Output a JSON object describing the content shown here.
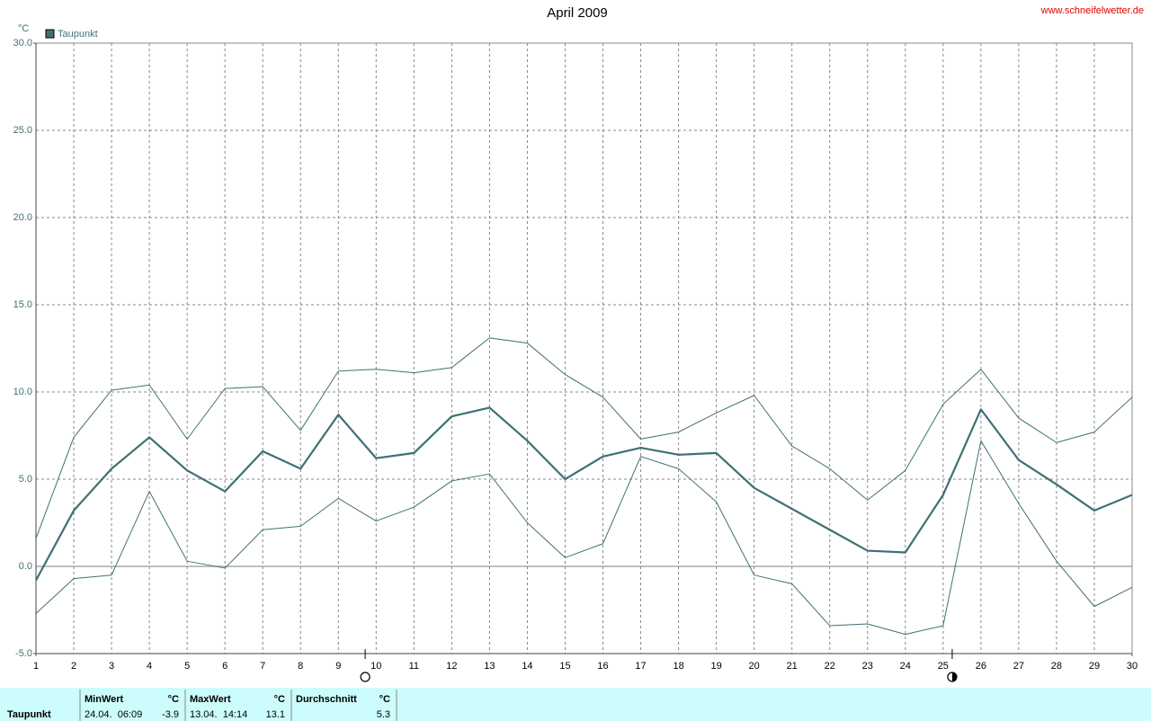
{
  "chart_data": {
    "type": "line",
    "title": "April 2009",
    "source": "www.schneifelwetter.de",
    "y_unit": "°C",
    "x": [
      1,
      2,
      3,
      4,
      5,
      6,
      7,
      8,
      9,
      10,
      11,
      12,
      13,
      14,
      15,
      16,
      17,
      18,
      19,
      20,
      21,
      22,
      23,
      24,
      25,
      26,
      27,
      28,
      29,
      30
    ],
    "xlim": [
      1,
      30
    ],
    "xticks": [
      1,
      2,
      3,
      4,
      5,
      6,
      7,
      8,
      9,
      10,
      11,
      12,
      13,
      14,
      15,
      16,
      17,
      18,
      19,
      20,
      21,
      22,
      23,
      24,
      25,
      26,
      27,
      28,
      29,
      30
    ],
    "ylim": [
      -5,
      30
    ],
    "yticks": [
      {
        "value": -5,
        "label": "-5.0"
      },
      {
        "value": 0,
        "label": "0.0"
      },
      {
        "value": 5,
        "label": "5.0"
      },
      {
        "value": 10,
        "label": "10.0"
      },
      {
        "value": 15,
        "label": "15.0"
      },
      {
        "value": 20,
        "label": "20.0"
      },
      {
        "value": 25,
        "label": "25.0"
      },
      {
        "value": 30,
        "label": "30.0"
      }
    ],
    "grid": true,
    "series": [
      {
        "name": "Taupunkt",
        "color": "#3f7074",
        "values": [
          -0.8,
          3.2,
          5.6,
          7.4,
          5.5,
          4.3,
          6.6,
          5.6,
          8.7,
          6.2,
          6.5,
          8.6,
          9.1,
          7.2,
          5.0,
          6.3,
          6.8,
          6.4,
          6.5,
          4.5,
          3.3,
          2.1,
          0.9,
          0.8,
          4.1,
          9.0,
          6.1,
          4.7,
          3.2,
          4.1
        ],
        "max": [
          1.6,
          7.4,
          10.1,
          10.4,
          7.3,
          10.2,
          10.3,
          7.8,
          11.2,
          11.3,
          11.1,
          11.4,
          13.1,
          12.8,
          11.0,
          9.7,
          7.3,
          7.7,
          8.8,
          9.8,
          6.9,
          5.6,
          3.8,
          5.5,
          9.3,
          11.3,
          8.5,
          7.1,
          7.7,
          9.7
        ],
        "min": [
          -2.7,
          -0.7,
          -0.5,
          4.3,
          0.3,
          -0.1,
          2.1,
          2.3,
          3.9,
          2.6,
          3.4,
          4.9,
          5.3,
          2.5,
          0.5,
          1.3,
          6.3,
          5.6,
          3.7,
          -0.5,
          -1.0,
          -3.4,
          -3.3,
          -3.9,
          -3.4,
          7.2,
          3.6,
          0.3,
          -2.3,
          -1.2
        ]
      }
    ],
    "moon_phases": [
      {
        "x": 9.71,
        "phase": "full"
      },
      {
        "x": 25.24,
        "phase": "quarter"
      }
    ]
  },
  "summary": {
    "label": "Taupunkt",
    "columns": [
      {
        "header": "MinWert",
        "unit": "°C",
        "time": "24.04.  06:09",
        "value": -3.9
      },
      {
        "header": "MaxWert",
        "unit": "°C",
        "time": "13.04.  14:14",
        "value": 13.1
      },
      {
        "header": "Durchschnitt",
        "unit": "°C",
        "time": null,
        "value": 5.3
      }
    ]
  }
}
